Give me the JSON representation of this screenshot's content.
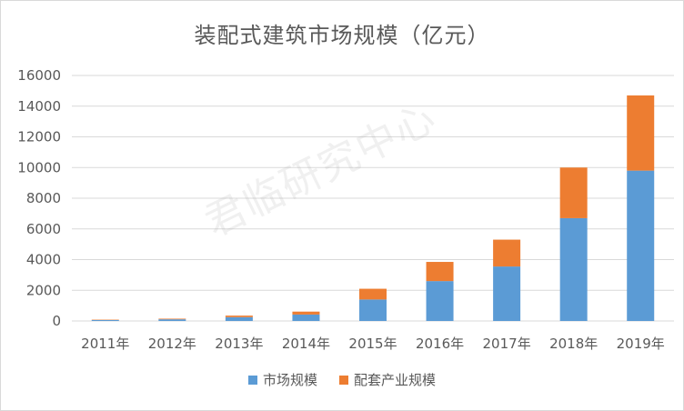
{
  "chart_data": {
    "type": "bar",
    "stacked": true,
    "title": "装配式建筑市场规模（亿元）",
    "categories": [
      "2011年",
      "2012年",
      "2013年",
      "2014年",
      "2015年",
      "2016年",
      "2017年",
      "2018年",
      "2019年"
    ],
    "series": [
      {
        "name": "市场规模",
        "color": "#5b9bd5",
        "values": [
          60,
          110,
          250,
          420,
          1400,
          2600,
          3550,
          6700,
          9800
        ]
      },
      {
        "name": "配套产业规模",
        "color": "#ed7d31",
        "values": [
          25,
          40,
          100,
          190,
          700,
          1250,
          1750,
          3300,
          4900
        ]
      }
    ],
    "ylim": [
      0,
      16000
    ],
    "yticks": [
      0,
      2000,
      4000,
      6000,
      8000,
      10000,
      12000,
      14000,
      16000
    ],
    "grid": true,
    "legend": "bottom"
  },
  "watermark": "君临研究中心"
}
